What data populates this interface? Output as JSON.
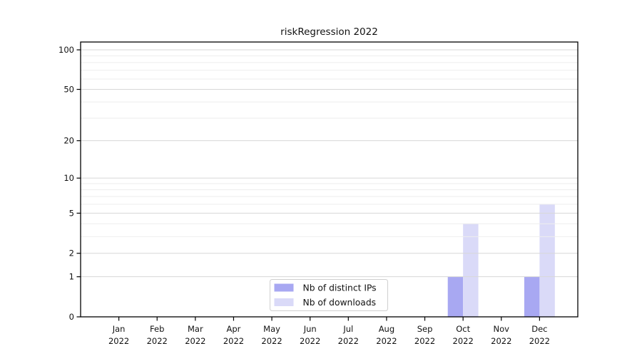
{
  "chart_data": {
    "type": "bar",
    "title": "riskRegression 2022",
    "categories": [
      "Jan",
      "Feb",
      "Mar",
      "Apr",
      "May",
      "Jun",
      "Jul",
      "Aug",
      "Sep",
      "Oct",
      "Nov",
      "Dec"
    ],
    "category_year": "2022",
    "series": [
      {
        "name": "Nb of distinct IPs",
        "color": "#a8a8f2",
        "values": [
          0,
          0,
          0,
          0,
          0,
          0,
          0,
          0,
          0,
          1,
          0,
          1
        ]
      },
      {
        "name": "Nb of downloads",
        "color": "#dadaf8",
        "values": [
          0,
          0,
          0,
          0,
          0,
          0,
          0,
          0,
          0,
          4,
          0,
          6
        ]
      }
    ],
    "yscale": "log1p",
    "ylim": [
      0,
      100
    ],
    "yticks": [
      0,
      1,
      2,
      5,
      10,
      20,
      50,
      100
    ],
    "minor_yticks": [
      3,
      4,
      6,
      7,
      8,
      9,
      30,
      40,
      60,
      70,
      80,
      90
    ],
    "grid": true,
    "legend": {
      "position": "bottom-center",
      "entries": [
        "Nb of distinct IPs",
        "Nb of downloads"
      ]
    },
    "colors": {
      "axis": "#000000",
      "text": "#111111",
      "major_grid": "#d7d7d7",
      "minor_grid": "#eeeeee",
      "legend_border": "#cfcfcf",
      "legend_bg": "#ffffff"
    }
  }
}
